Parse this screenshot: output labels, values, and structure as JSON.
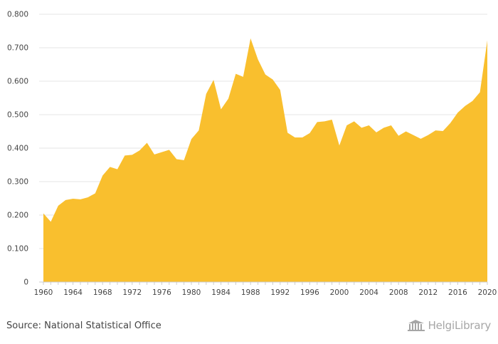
{
  "chart_data": {
    "type": "area",
    "title": "",
    "xlabel": "",
    "ylabel": "",
    "x": [
      1960,
      1961,
      1962,
      1963,
      1964,
      1965,
      1966,
      1967,
      1968,
      1969,
      1970,
      1971,
      1972,
      1973,
      1974,
      1975,
      1976,
      1977,
      1978,
      1979,
      1980,
      1981,
      1982,
      1983,
      1984,
      1985,
      1986,
      1987,
      1988,
      1989,
      1990,
      1991,
      1992,
      1993,
      1994,
      1995,
      1996,
      1997,
      1998,
      1999,
      2000,
      2001,
      2002,
      2003,
      2004,
      2005,
      2006,
      2007,
      2008,
      2009,
      2010,
      2011,
      2012,
      2013,
      2014,
      2015,
      2016,
      2017,
      2018,
      2019,
      2020
    ],
    "series": [
      {
        "values": [
          0.205,
          0.18,
          0.228,
          0.245,
          0.249,
          0.247,
          0.253,
          0.265,
          0.318,
          0.344,
          0.337,
          0.378,
          0.38,
          0.393,
          0.416,
          0.381,
          0.388,
          0.395,
          0.367,
          0.364,
          0.427,
          0.453,
          0.562,
          0.604,
          0.516,
          0.548,
          0.622,
          0.613,
          0.728,
          0.665,
          0.62,
          0.605,
          0.574,
          0.446,
          0.432,
          0.432,
          0.445,
          0.478,
          0.48,
          0.485,
          0.408,
          0.468,
          0.48,
          0.461,
          0.468,
          0.447,
          0.461,
          0.468,
          0.437,
          0.45,
          0.439,
          0.428,
          0.439,
          0.453,
          0.451,
          0.475,
          0.506,
          0.526,
          0.541,
          0.567,
          0.722
        ],
        "color": "#f9bf2e"
      }
    ],
    "ylim": [
      0,
      0.8
    ],
    "yticks": [
      0,
      0.1,
      0.2,
      0.3,
      0.4,
      0.5,
      0.6,
      0.7,
      0.8
    ],
    "ytick_labels": [
      "0",
      "0.100",
      "0.200",
      "0.300",
      "0.400",
      "0.500",
      "0.600",
      "0.700",
      "0.800"
    ],
    "xticks": [
      "1960",
      "1964",
      "1968",
      "1972",
      "1976",
      "1980",
      "1984",
      "1988",
      "1992",
      "1996",
      "2000",
      "2004",
      "2008",
      "2012",
      "2016",
      "2020"
    ],
    "grid": true,
    "legend": "none"
  },
  "footer": {
    "source": "Source: National Statistical Office",
    "brand": "HelgiLibrary",
    "brand_icon": "library-building-icon"
  }
}
